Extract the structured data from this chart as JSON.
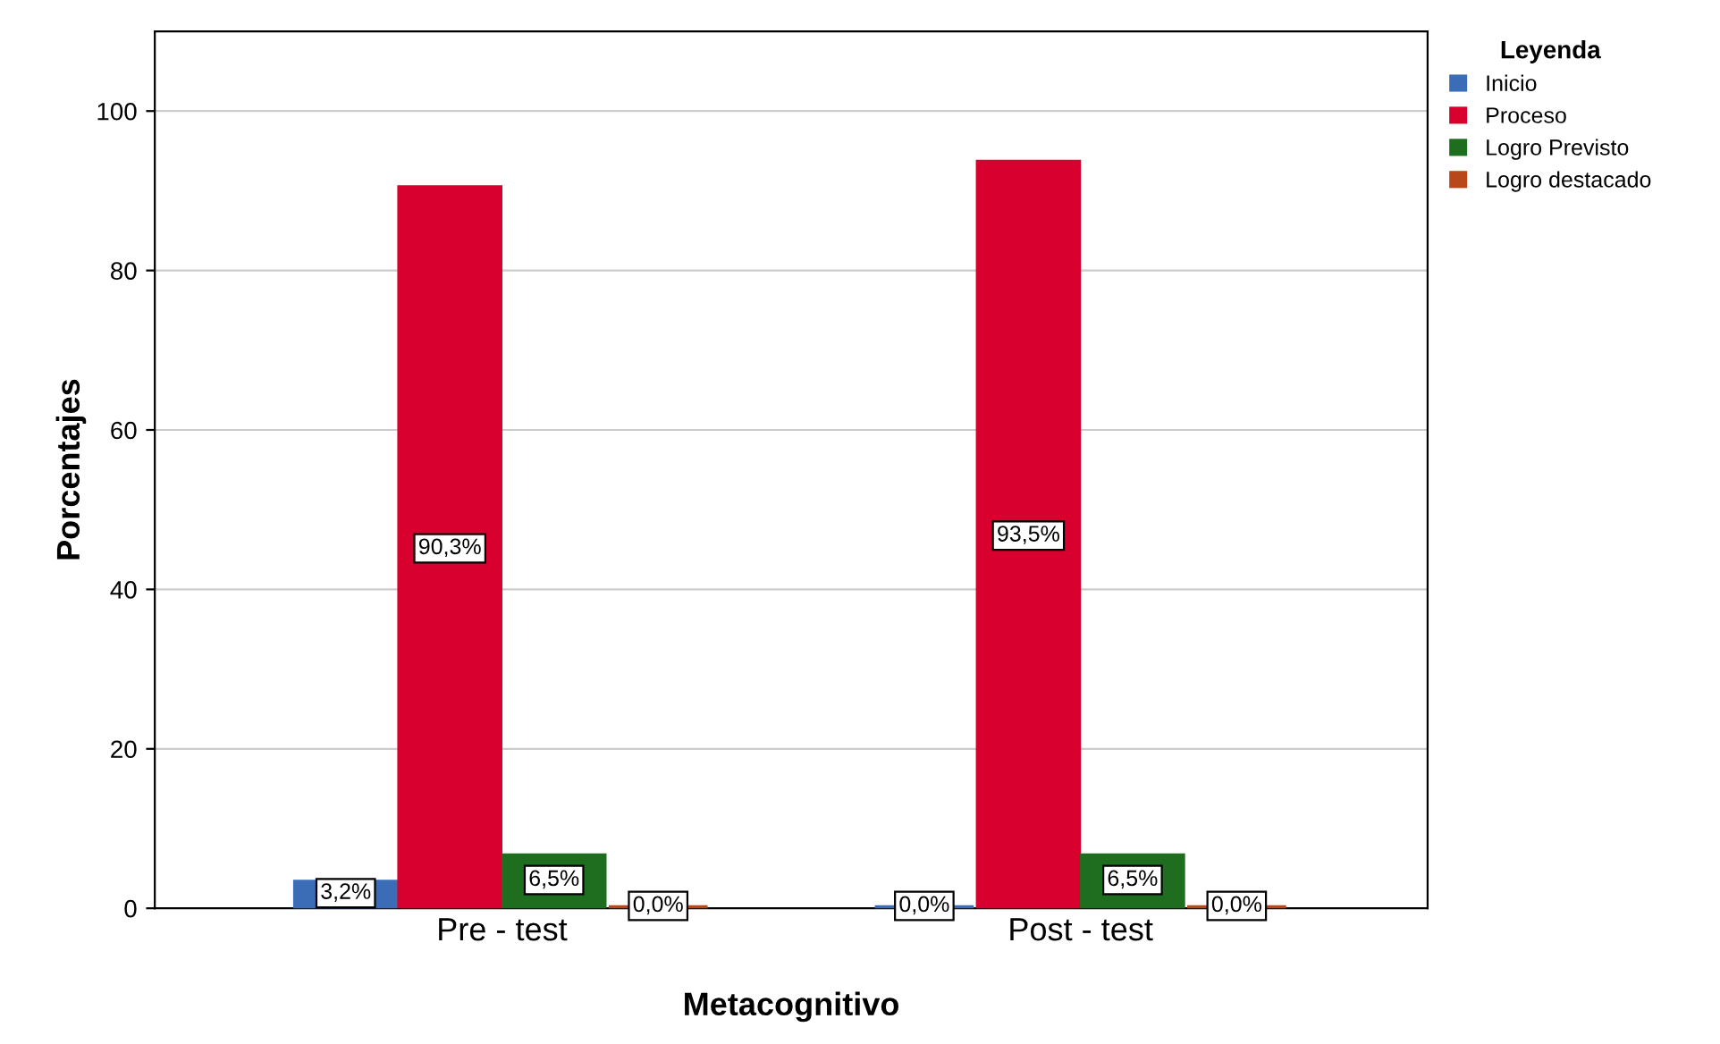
{
  "chart_data": {
    "type": "bar",
    "xlabel": "Metacognitivo",
    "ylabel": "Porcentajes",
    "legend_title": "Leyenda",
    "categories": [
      "Pre - test",
      "Post - test"
    ],
    "series": [
      {
        "name": "Inicio",
        "color": "#3a6db5",
        "values": [
          3.2,
          0.0
        ],
        "value_labels": [
          "3,2%",
          "0,0%"
        ]
      },
      {
        "name": "Proceso",
        "color": "#d8002f",
        "values": [
          90.3,
          93.5
        ],
        "value_labels": [
          "90,3%",
          "93,5%"
        ]
      },
      {
        "name": "Logro Previsto",
        "color": "#1f6e1f",
        "values": [
          6.5,
          6.5
        ],
        "value_labels": [
          "6,5%",
          "6,5%"
        ]
      },
      {
        "name": "Logro destacado",
        "color": "#b8481a",
        "values": [
          0.0,
          0.0
        ],
        "value_labels": [
          "0,0%",
          "0,0%"
        ]
      }
    ],
    "ylim": [
      0,
      110
    ],
    "yticks": [
      0,
      20,
      40,
      60,
      80,
      100
    ],
    "grid": "y",
    "legend": "top right"
  }
}
